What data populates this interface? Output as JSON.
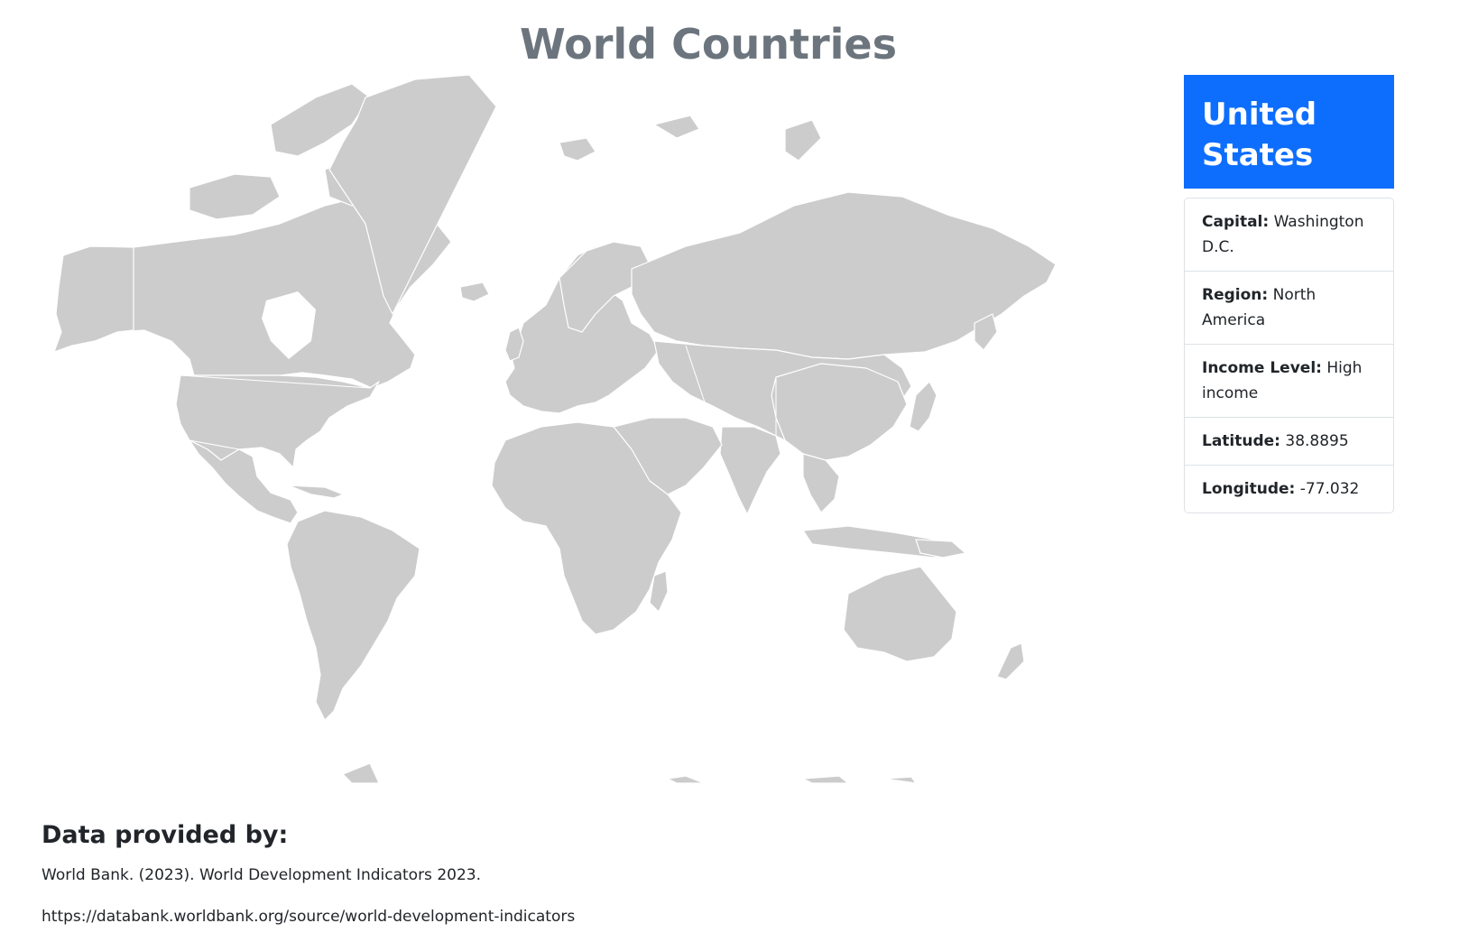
{
  "page": {
    "title": "World Countries"
  },
  "selected_country": {
    "name": "United States",
    "fields": [
      {
        "label": "Capital:",
        "value": "Washington D.C."
      },
      {
        "label": "Region:",
        "value": "North America"
      },
      {
        "label": "Income Level:",
        "value": "High income"
      },
      {
        "label": "Latitude:",
        "value": "38.8895"
      },
      {
        "label": "Longitude:",
        "value": "-77.032"
      }
    ]
  },
  "map": {
    "land_color": "#cccccc",
    "border_color": "#ffffff"
  },
  "footer": {
    "heading": "Data provided by:",
    "citation": "World Bank. (2023). World Development Indicators 2023.",
    "url": "https://databank.worldbank.org/source/world-development-indicators"
  },
  "colors": {
    "header_bg": "#0d6efd",
    "title_color": "#6c757d"
  }
}
